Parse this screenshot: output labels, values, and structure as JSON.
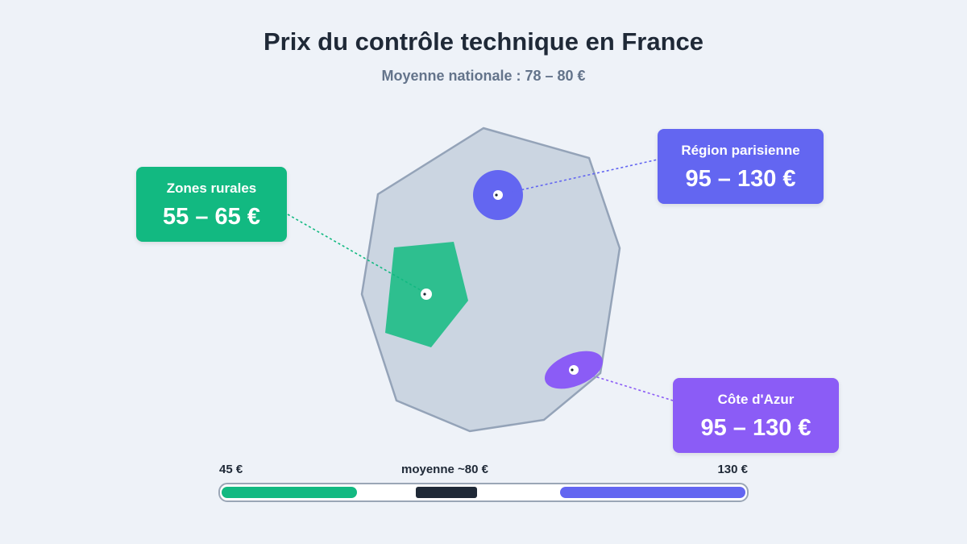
{
  "title": "Prix du contrôle technique en France",
  "subtitle": "Moyenne nationale : 78 – 80 €",
  "regions": {
    "rural": {
      "label": "Zones rurales",
      "range": "55 – 65 €",
      "color": "#12b981"
    },
    "paris": {
      "label": "Région parisienne",
      "range": "95 – 130 €",
      "color": "#6366f1"
    },
    "azur": {
      "label": "Côte d'Azur",
      "range": "95 – 130 €",
      "color": "#8b5cf6"
    }
  },
  "scale": {
    "min_label": "45 €",
    "mid_label": "moyenne ~80 €",
    "max_label": "130 €"
  }
}
